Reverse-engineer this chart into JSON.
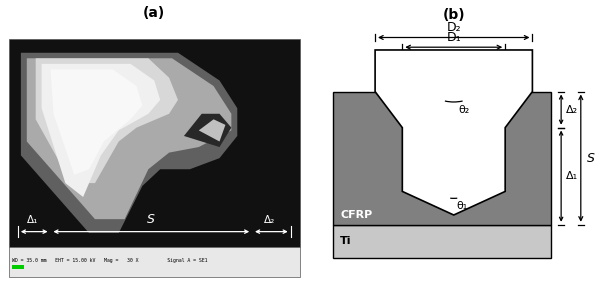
{
  "fig_width": 6.05,
  "fig_height": 2.83,
  "dpi": 100,
  "panel_a_label": "(a)",
  "panel_b_label": "(b)",
  "bg_color": "#ffffff",
  "cfrp_color": "#808080",
  "ti_color": "#c8c8c8",
  "drill_fill": "#ffffff",
  "drill_edge": "#000000",
  "label_D2": "D₂",
  "label_D1": "D₁",
  "label_theta2": "θ₂",
  "label_theta1": "θ₁",
  "label_Delta1": "Δ₁",
  "label_Delta2": "Δ₂",
  "label_S": "S",
  "label_CFRP": "CFRP",
  "label_Ti": "Ti",
  "sem_metadata": "WD = 35.0 mm   EHT = 15.00 kV   Mag =   30 X          Signal A = SE1"
}
